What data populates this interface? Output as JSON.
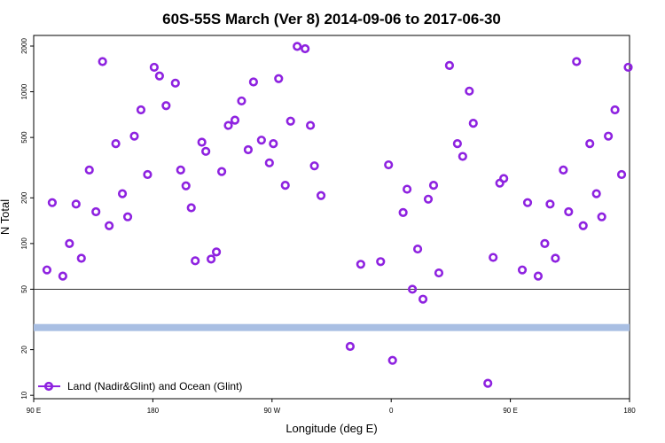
{
  "chart_data": {
    "type": "scatter",
    "title": "60S-55S March (Ver 8)   2014-09-06 to 2017-06-30",
    "xlabel": "Longitude (deg E)",
    "ylabel": "N Total",
    "yscale": "log",
    "ylim": [
      9.5,
      2350
    ],
    "x_ticks": [
      {
        "pos": 0,
        "label": "90 E"
      },
      {
        "pos": 90,
        "label": "180"
      },
      {
        "pos": 180,
        "label": "90 W"
      },
      {
        "pos": 270,
        "label": "0"
      },
      {
        "pos": 360,
        "label": "90 E"
      },
      {
        "pos": 450,
        "label": "180"
      }
    ],
    "y_ticks": [
      {
        "value": 10,
        "label": "10"
      },
      {
        "value": 20,
        "label": "20"
      },
      {
        "value": 50,
        "label": "50"
      },
      {
        "value": 100,
        "label": "100"
      },
      {
        "value": 200,
        "label": "200"
      },
      {
        "value": 500,
        "label": "500"
      },
      {
        "value": 1000,
        "label": "1000"
      },
      {
        "value": 2000,
        "label": "2000"
      }
    ],
    "reference_line": 50,
    "band": {
      "low": 26.5,
      "high": 29.5,
      "color": "#a9bfe3"
    },
    "legend": {
      "label": "Land (Nadir&Glint) and Ocean (Glint)",
      "position": "bottom-left"
    },
    "series": [
      {
        "name": "Land (Nadir&Glint) and Ocean (Glint)",
        "color": "#8e22e0",
        "points": [
          [
            10,
            67
          ],
          [
            14,
            186
          ],
          [
            22,
            61
          ],
          [
            27,
            100
          ],
          [
            32,
            182
          ],
          [
            36,
            80
          ],
          [
            42,
            305
          ],
          [
            47,
            162
          ],
          [
            52,
            1580
          ],
          [
            57,
            131
          ],
          [
            62,
            455
          ],
          [
            67,
            213
          ],
          [
            71,
            150
          ],
          [
            76,
            510
          ],
          [
            81,
            760
          ],
          [
            86,
            285
          ],
          [
            91,
            1450
          ],
          [
            95,
            1270
          ],
          [
            100,
            810
          ],
          [
            107,
            1140
          ],
          [
            111,
            305
          ],
          [
            115,
            240
          ],
          [
            119,
            172
          ],
          [
            122,
            77
          ],
          [
            127,
            465
          ],
          [
            130,
            405
          ],
          [
            134,
            79
          ],
          [
            138,
            88
          ],
          [
            142,
            298
          ],
          [
            147,
            600
          ],
          [
            152,
            650
          ],
          [
            157,
            870
          ],
          [
            162,
            415
          ],
          [
            166,
            1160
          ],
          [
            172,
            480
          ],
          [
            178,
            340
          ],
          [
            181,
            455
          ],
          [
            185,
            1220
          ],
          [
            190,
            242
          ],
          [
            194,
            640
          ],
          [
            199,
            1990
          ],
          [
            205,
            1920
          ],
          [
            209,
            600
          ],
          [
            212,
            325
          ],
          [
            217,
            207
          ],
          [
            239,
            21
          ],
          [
            247,
            73
          ],
          [
            262,
            76
          ],
          [
            268,
            330
          ],
          [
            271,
            17
          ],
          [
            279,
            160
          ],
          [
            282,
            228
          ],
          [
            286,
            50
          ],
          [
            290,
            92
          ],
          [
            294,
            43
          ],
          [
            298,
            196
          ],
          [
            302,
            242
          ],
          [
            306,
            64
          ],
          [
            314,
            1490
          ],
          [
            320,
            455
          ],
          [
            324,
            375
          ],
          [
            329,
            1010
          ],
          [
            332,
            620
          ],
          [
            343,
            12
          ],
          [
            347,
            81
          ],
          [
            352,
            250
          ],
          [
            355,
            268
          ],
          [
            369,
            67
          ],
          [
            373,
            186
          ],
          [
            381,
            61
          ],
          [
            386,
            100
          ],
          [
            390,
            182
          ],
          [
            394,
            80
          ],
          [
            400,
            305
          ],
          [
            404,
            162
          ],
          [
            410,
            1580
          ],
          [
            415,
            131
          ],
          [
            420,
            455
          ],
          [
            425,
            213
          ],
          [
            429,
            150
          ],
          [
            434,
            510
          ],
          [
            439,
            760
          ],
          [
            444,
            285
          ],
          [
            449,
            1450
          ]
        ]
      }
    ]
  }
}
